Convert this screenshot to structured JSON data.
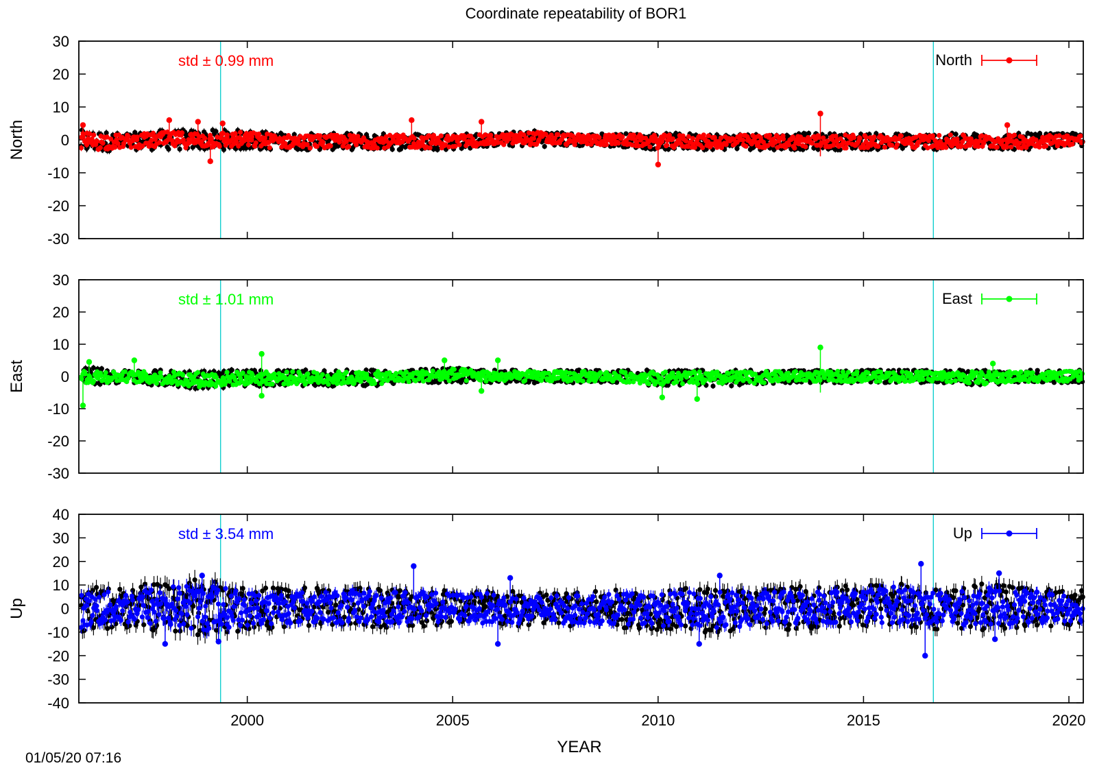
{
  "title": "Coordinate repeatability of BOR1",
  "xlabel": "YEAR",
  "timestamp": "01/05/20 07:16",
  "chart_data": [
    {
      "type": "scatter",
      "component": "North",
      "ylabel": "North",
      "legend": "North",
      "legend_position": "top-right",
      "std_label": "std ± 0.99 mm",
      "color": "#ff0000",
      "xlim": [
        1995.9,
        2020.35
      ],
      "ylim": [
        -30,
        30
      ],
      "yticks": [
        -30,
        -20,
        -10,
        0,
        10,
        20,
        30
      ],
      "xticks": [
        2000,
        2005,
        2010,
        2015,
        2020
      ],
      "vlines_color": "#00cccc",
      "vlines": [
        1999.35,
        2016.7
      ],
      "grid": false,
      "band": [
        {
          "x": 1996,
          "lo": -4,
          "hi": 3
        },
        {
          "x": 1997,
          "lo": -3,
          "hi": 2
        },
        {
          "x": 1998,
          "lo": -3,
          "hi": 3
        },
        {
          "x": 1999,
          "lo": -3,
          "hi": 3
        },
        {
          "x": 2000,
          "lo": -3,
          "hi": 3
        },
        {
          "x": 2001,
          "lo": -3,
          "hi": 2
        },
        {
          "x": 2002,
          "lo": -3,
          "hi": 2
        },
        {
          "x": 2003,
          "lo": -3,
          "hi": 2
        },
        {
          "x": 2004,
          "lo": -3,
          "hi": 2
        },
        {
          "x": 2005,
          "lo": -3,
          "hi": 2
        },
        {
          "x": 2006,
          "lo": -2,
          "hi": 2
        },
        {
          "x": 2007,
          "lo": -2,
          "hi": 3
        },
        {
          "x": 2008,
          "lo": -2,
          "hi": 2
        },
        {
          "x": 2009,
          "lo": -2,
          "hi": 2
        },
        {
          "x": 2010,
          "lo": -3,
          "hi": 2
        },
        {
          "x": 2011,
          "lo": -3,
          "hi": 2
        },
        {
          "x": 2012,
          "lo": -3,
          "hi": 2
        },
        {
          "x": 2013,
          "lo": -3,
          "hi": 2
        },
        {
          "x": 2014,
          "lo": -3,
          "hi": 2
        },
        {
          "x": 2015,
          "lo": -3,
          "hi": 2
        },
        {
          "x": 2016,
          "lo": -3,
          "hi": 2
        },
        {
          "x": 2017,
          "lo": -3,
          "hi": 2
        },
        {
          "x": 2018,
          "lo": -3,
          "hi": 2
        },
        {
          "x": 2019,
          "lo": -3,
          "hi": 2
        },
        {
          "x": 2020,
          "lo": -2,
          "hi": 2
        }
      ],
      "outliers": [
        {
          "x": 1996.0,
          "y": 4.5,
          "hi": 4.5,
          "lo": -1
        },
        {
          "x": 1998.1,
          "y": 6,
          "hi": 6,
          "lo": 1
        },
        {
          "x": 1998.8,
          "y": 5.5,
          "hi": 5.5,
          "lo": 1
        },
        {
          "x": 1999.1,
          "y": -6.5,
          "hi": 0,
          "lo": -6.5
        },
        {
          "x": 1999.4,
          "y": 5,
          "hi": 5,
          "lo": 0
        },
        {
          "x": 2004.0,
          "y": 6,
          "hi": 6,
          "lo": 1
        },
        {
          "x": 2005.7,
          "y": 5.5,
          "hi": 5.5,
          "lo": 1
        },
        {
          "x": 2010.0,
          "y": -7.5,
          "hi": 0,
          "lo": -7.5
        },
        {
          "x": 2013.95,
          "y": 8,
          "hi": 8,
          "lo": -5
        },
        {
          "x": 2018.5,
          "y": 4.5,
          "hi": 4.5,
          "lo": 0
        }
      ]
    },
    {
      "type": "scatter",
      "component": "East",
      "ylabel": "East",
      "legend": "East",
      "legend_position": "top-right",
      "std_label": "std ± 1.01 mm",
      "color": "#00ff00",
      "xlim": [
        1995.9,
        2020.35
      ],
      "ylim": [
        -30,
        30
      ],
      "yticks": [
        -30,
        -20,
        -10,
        0,
        10,
        20,
        30
      ],
      "xticks": [
        2000,
        2005,
        2010,
        2015,
        2020
      ],
      "vlines_color": "#00cccc",
      "vlines": [
        1999.35,
        2016.7
      ],
      "grid": false,
      "band": [
        {
          "x": 1996,
          "lo": -3,
          "hi": 3
        },
        {
          "x": 1997,
          "lo": -2,
          "hi": 2
        },
        {
          "x": 1998,
          "lo": -3,
          "hi": 2
        },
        {
          "x": 1999,
          "lo": -4,
          "hi": 2
        },
        {
          "x": 2000,
          "lo": -3,
          "hi": 2
        },
        {
          "x": 2001,
          "lo": -3,
          "hi": 2
        },
        {
          "x": 2002,
          "lo": -3,
          "hi": 2
        },
        {
          "x": 2003,
          "lo": -3,
          "hi": 2
        },
        {
          "x": 2004,
          "lo": -2,
          "hi": 2
        },
        {
          "x": 2005,
          "lo": -2,
          "hi": 3
        },
        {
          "x": 2006,
          "lo": -2,
          "hi": 2
        },
        {
          "x": 2007,
          "lo": -2,
          "hi": 2
        },
        {
          "x": 2008,
          "lo": -2,
          "hi": 2
        },
        {
          "x": 2009,
          "lo": -2,
          "hi": 2
        },
        {
          "x": 2010,
          "lo": -3,
          "hi": 2
        },
        {
          "x": 2011,
          "lo": -3,
          "hi": 2
        },
        {
          "x": 2012,
          "lo": -3,
          "hi": 2
        },
        {
          "x": 2013,
          "lo": -2,
          "hi": 2
        },
        {
          "x": 2014,
          "lo": -2,
          "hi": 2
        },
        {
          "x": 2015,
          "lo": -2,
          "hi": 2
        },
        {
          "x": 2016,
          "lo": -2,
          "hi": 2
        },
        {
          "x": 2017,
          "lo": -2,
          "hi": 2
        },
        {
          "x": 2018,
          "lo": -3,
          "hi": 2
        },
        {
          "x": 2019,
          "lo": -2,
          "hi": 2
        },
        {
          "x": 2020,
          "lo": -2,
          "hi": 2
        }
      ],
      "outliers": [
        {
          "x": 1996.0,
          "y": -9,
          "hi": 0,
          "lo": -9
        },
        {
          "x": 1996.15,
          "y": 4.5,
          "hi": 4.5,
          "lo": 0
        },
        {
          "x": 1997.25,
          "y": 5,
          "hi": 5,
          "lo": 0
        },
        {
          "x": 2000.35,
          "y": 7,
          "hi": 7,
          "lo": 0
        },
        {
          "x": 2000.35,
          "y": -6,
          "hi": 0,
          "lo": -6
        },
        {
          "x": 2004.8,
          "y": 5,
          "hi": 5,
          "lo": 0
        },
        {
          "x": 2005.7,
          "y": -4.5,
          "hi": 0,
          "lo": -4.5
        },
        {
          "x": 2006.1,
          "y": 5,
          "hi": 5,
          "lo": 0
        },
        {
          "x": 2010.1,
          "y": -6.5,
          "hi": 0,
          "lo": -6.5
        },
        {
          "x": 2010.95,
          "y": -7,
          "hi": 0,
          "lo": -7
        },
        {
          "x": 2013.95,
          "y": 9,
          "hi": 9,
          "lo": -5
        },
        {
          "x": 2018.15,
          "y": 4,
          "hi": 4,
          "lo": 0
        }
      ]
    },
    {
      "type": "scatter",
      "component": "Up",
      "ylabel": "Up",
      "legend": "Up",
      "legend_position": "top-right",
      "std_label": "std ± 3.54 mm",
      "color": "#0000ff",
      "xlim": [
        1995.9,
        2020.35
      ],
      "ylim": [
        -40,
        40
      ],
      "yticks": [
        -40,
        -30,
        -20,
        -10,
        0,
        10,
        20,
        30,
        40
      ],
      "xticks": [
        2000,
        2005,
        2010,
        2015,
        2020
      ],
      "vlines_color": "#00cccc",
      "vlines": [
        1999.35,
        2016.7
      ],
      "grid": false,
      "band": [
        {
          "x": 1996,
          "lo": -10,
          "hi": 9
        },
        {
          "x": 1997,
          "lo": -8,
          "hi": 9
        },
        {
          "x": 1998,
          "lo": -10,
          "hi": 12
        },
        {
          "x": 1999,
          "lo": -12,
          "hi": 13
        },
        {
          "x": 2000,
          "lo": -9,
          "hi": 9
        },
        {
          "x": 2001,
          "lo": -8,
          "hi": 9
        },
        {
          "x": 2002,
          "lo": -8,
          "hi": 9
        },
        {
          "x": 2003,
          "lo": -8,
          "hi": 10
        },
        {
          "x": 2004,
          "lo": -8,
          "hi": 9
        },
        {
          "x": 2005,
          "lo": -7,
          "hi": 8
        },
        {
          "x": 2006,
          "lo": -8,
          "hi": 8
        },
        {
          "x": 2007,
          "lo": -8,
          "hi": 7
        },
        {
          "x": 2008,
          "lo": -8,
          "hi": 7
        },
        {
          "x": 2009,
          "lo": -8,
          "hi": 8
        },
        {
          "x": 2010,
          "lo": -9,
          "hi": 8
        },
        {
          "x": 2011,
          "lo": -10,
          "hi": 9
        },
        {
          "x": 2012,
          "lo": -10,
          "hi": 9
        },
        {
          "x": 2013,
          "lo": -9,
          "hi": 9
        },
        {
          "x": 2014,
          "lo": -8,
          "hi": 10
        },
        {
          "x": 2015,
          "lo": -8,
          "hi": 10
        },
        {
          "x": 2016,
          "lo": -8,
          "hi": 12
        },
        {
          "x": 2017,
          "lo": -9,
          "hi": 8
        },
        {
          "x": 2018,
          "lo": -9,
          "hi": 11
        },
        {
          "x": 2019,
          "lo": -8,
          "hi": 9
        },
        {
          "x": 2020,
          "lo": -7,
          "hi": 8
        }
      ],
      "outliers": [
        {
          "x": 1998.0,
          "y": -15,
          "hi": 0,
          "lo": -15
        },
        {
          "x": 1998.9,
          "y": 14,
          "hi": 14,
          "lo": 0
        },
        {
          "x": 1999.3,
          "y": -14,
          "hi": 0,
          "lo": -14
        },
        {
          "x": 2004.05,
          "y": 18,
          "hi": 18,
          "lo": 5
        },
        {
          "x": 2006.1,
          "y": -15,
          "hi": 0,
          "lo": -15
        },
        {
          "x": 2006.4,
          "y": 13,
          "hi": 13,
          "lo": 5
        },
        {
          "x": 2011.5,
          "y": 14,
          "hi": 14,
          "lo": 5
        },
        {
          "x": 2011.0,
          "y": -15,
          "hi": 0,
          "lo": -15
        },
        {
          "x": 2016.4,
          "y": 19,
          "hi": 19,
          "lo": 5
        },
        {
          "x": 2016.5,
          "y": -20,
          "hi": -5,
          "lo": -20
        },
        {
          "x": 2018.3,
          "y": 15,
          "hi": 15,
          "lo": 5
        },
        {
          "x": 2018.2,
          "y": -13,
          "hi": 0,
          "lo": -13
        }
      ]
    }
  ]
}
